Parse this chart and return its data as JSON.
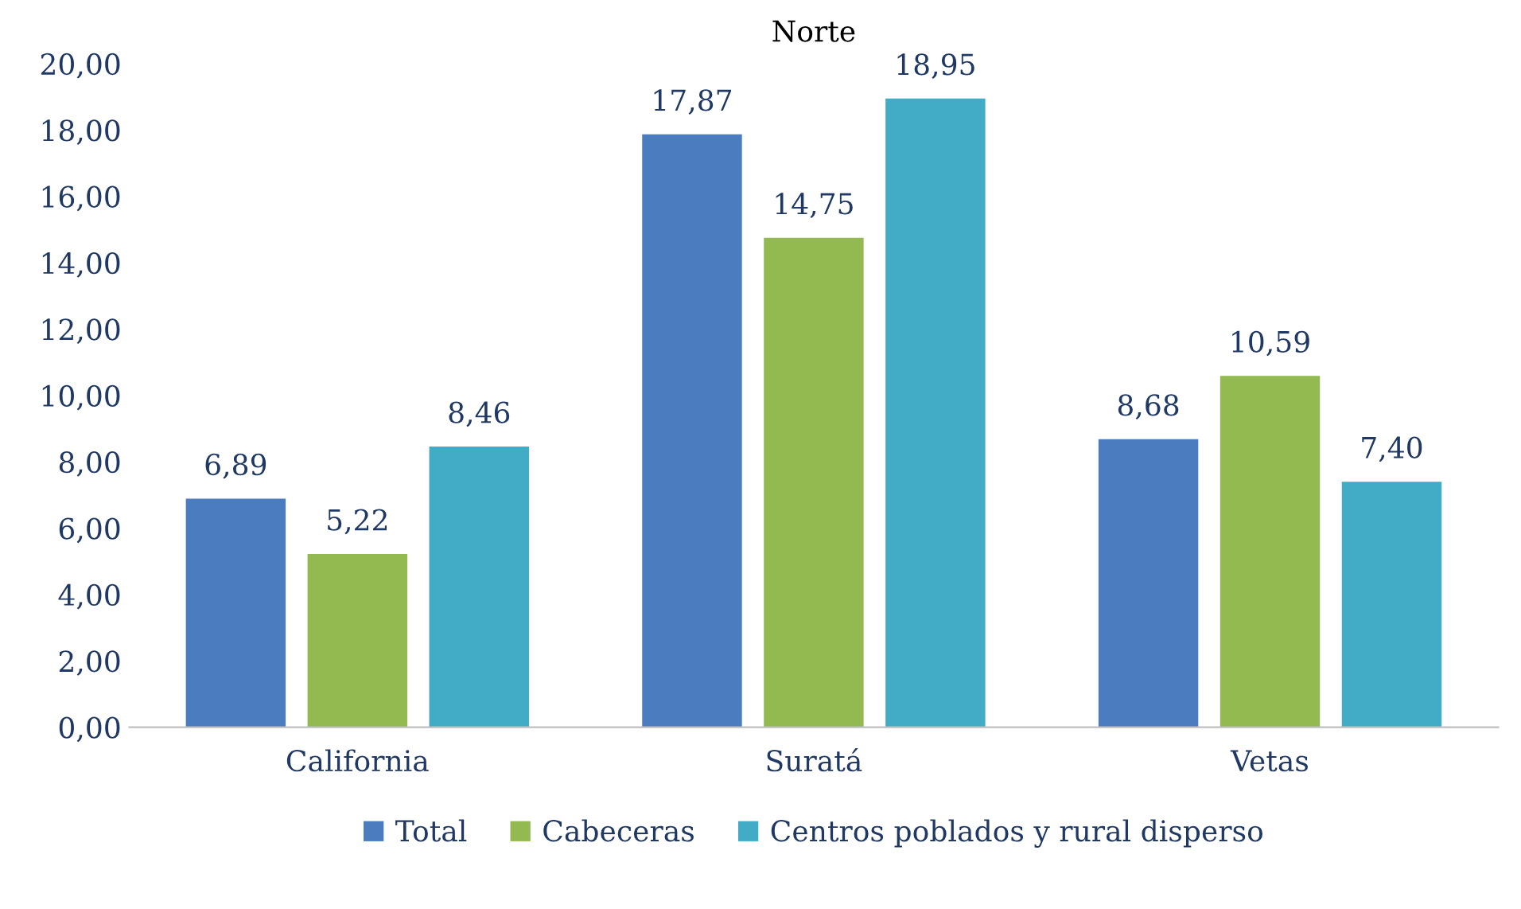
{
  "chart_data": {
    "type": "bar",
    "title": "Norte",
    "categories": [
      "California",
      "Suratá",
      "Vetas"
    ],
    "series": [
      {
        "name": "Total",
        "color": "#4a7cbf",
        "values": [
          6.89,
          17.87,
          8.68
        ],
        "value_labels": [
          "6,89",
          "17,87",
          "8,68"
        ]
      },
      {
        "name": "Cabeceras",
        "color": "#93b951",
        "values": [
          5.22,
          14.75,
          10.59
        ],
        "value_labels": [
          "5,22",
          "14,75",
          "10,59"
        ]
      },
      {
        "name": "Centros poblados y rural disperso",
        "color": "#42acc6",
        "values": [
          8.46,
          18.95,
          7.4
        ],
        "value_labels": [
          "8,46",
          "18,95",
          "7,40"
        ]
      }
    ],
    "ylim": [
      0,
      20
    ],
    "yticks": [
      {
        "value": 0,
        "label": "0,00"
      },
      {
        "value": 2,
        "label": "2,00"
      },
      {
        "value": 4,
        "label": "4,00"
      },
      {
        "value": 6,
        "label": "6,00"
      },
      {
        "value": 8,
        "label": "8,00"
      },
      {
        "value": 10,
        "label": "10,00"
      },
      {
        "value": 12,
        "label": "12,00"
      },
      {
        "value": 14,
        "label": "14,00"
      },
      {
        "value": 16,
        "label": "16,00"
      },
      {
        "value": 18,
        "label": "18,00"
      },
      {
        "value": 20,
        "label": "20,00"
      }
    ],
    "grid": false,
    "legend": "bottom"
  }
}
